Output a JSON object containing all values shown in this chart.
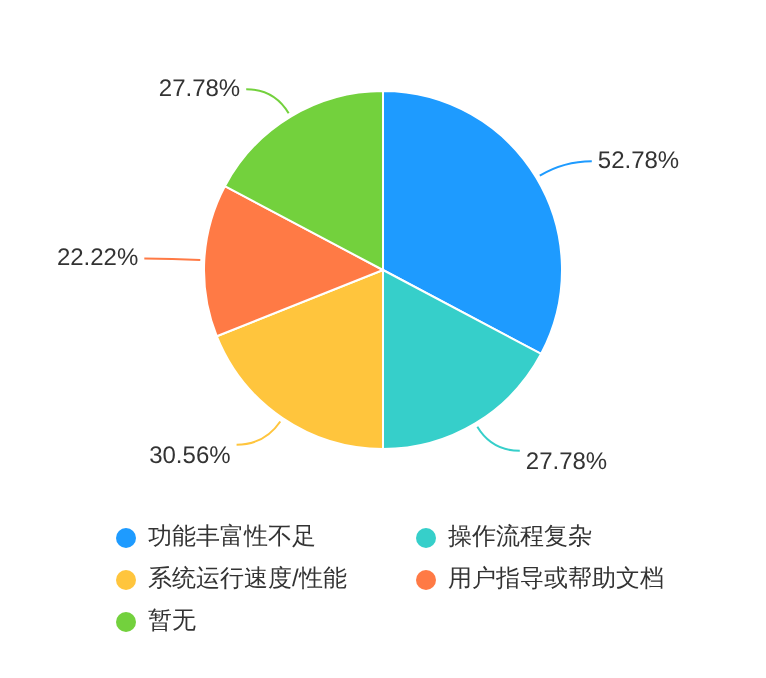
{
  "chart_data": {
    "type": "pie",
    "categories": [
      "功能丰富性不足",
      "操作流程复杂",
      "系统运行速度/性能",
      "用户指导或帮助文档",
      "暂无"
    ],
    "values": [
      52.78,
      27.78,
      30.56,
      22.22,
      27.78
    ],
    "colors": [
      "#1e9bff",
      "#36cfca",
      "#ffc53d",
      "#ff7a45",
      "#73d13d"
    ],
    "value_labels": [
      "52.78%",
      "27.78%",
      "30.56%",
      "22.22%",
      "27.78%"
    ],
    "legend": "bottom"
  }
}
